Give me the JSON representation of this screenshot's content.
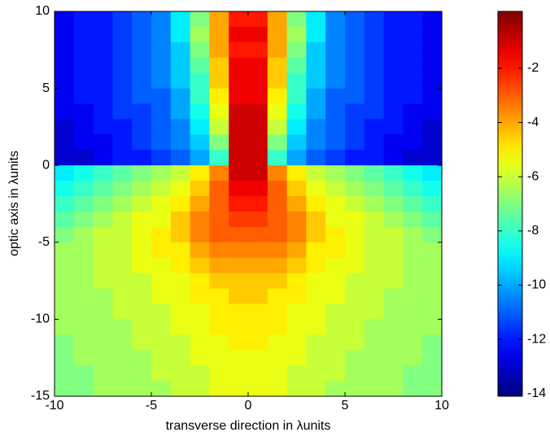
{
  "chart_data": {
    "type": "heatmap",
    "xlabel": "transverse direction in  λunits",
    "ylabel": "optic axis in λunits",
    "xlim": [
      -10,
      10
    ],
    "ylim": [
      -15,
      10
    ],
    "xticks": [
      -10,
      -5,
      0,
      5,
      10
    ],
    "yticks": [
      10,
      5,
      0,
      -5,
      -10,
      -15
    ],
    "colormap": "jet",
    "zlim": [
      -14.1,
      0.1
    ],
    "colorbar_ticks": [
      -2,
      -4,
      -6,
      -8,
      -10,
      -12,
      -14
    ],
    "x": [
      -9.5,
      -8.5,
      -7.5,
      -6.5,
      -5.5,
      -4.5,
      -3.5,
      -2.5,
      -1.5,
      -0.5,
      0.5,
      1.5,
      2.5,
      3.5,
      4.5,
      5.5,
      6.5,
      7.5,
      8.5,
      9.5
    ],
    "y": [
      9.5,
      8.5,
      7.5,
      6.5,
      5.5,
      4.5,
      3.5,
      2.5,
      1.5,
      0.5,
      -0.5,
      -1.5,
      -2.5,
      -3.5,
      -4.5,
      -5.5,
      -6.5,
      -7.5,
      -8.5,
      -9.5,
      -10.5,
      -11.5,
      -12.5,
      -13.5,
      -14.5
    ],
    "z": [
      [
        -12.5,
        -12,
        -12,
        -11.5,
        -11,
        -10.5,
        -9,
        -7,
        -4,
        -2,
        -2,
        -4,
        -7,
        -9,
        -10.5,
        -11,
        -11.5,
        -12,
        -12,
        -12.5
      ],
      [
        -12.5,
        -12,
        -12,
        -11.5,
        -11,
        -10.5,
        -9,
        -6.5,
        -4,
        -1.5,
        -1.5,
        -4,
        -6.5,
        -9,
        -10.5,
        -11,
        -11.5,
        -12,
        -12,
        -12.5
      ],
      [
        -12.5,
        -12,
        -12,
        -11.5,
        -11,
        -10.5,
        -9.5,
        -7,
        -4,
        -2,
        -2,
        -4,
        -7,
        -9.5,
        -10.5,
        -11,
        -11.5,
        -12,
        -12,
        -12.5
      ],
      [
        -12.5,
        -12,
        -12,
        -11.5,
        -11,
        -10.5,
        -9.5,
        -7.5,
        -4.5,
        -1.5,
        -1.5,
        -4.5,
        -7.5,
        -9.5,
        -10.5,
        -11,
        -11.5,
        -12,
        -12,
        -12.5
      ],
      [
        -12.5,
        -12,
        -12,
        -11.5,
        -11,
        -10.5,
        -9.5,
        -8,
        -4.5,
        -1.5,
        -1.5,
        -4.5,
        -8,
        -9.5,
        -10.5,
        -11,
        -11.5,
        -12,
        -12,
        -12.5
      ],
      [
        -12.5,
        -12,
        -12,
        -11.5,
        -11,
        -11,
        -10,
        -8,
        -5,
        -1.5,
        -1.5,
        -5,
        -8,
        -10,
        -11,
        -11,
        -11.5,
        -12,
        -12,
        -12.5
      ],
      [
        -12.5,
        -12.5,
        -12,
        -11.5,
        -11.5,
        -11,
        -10,
        -8.5,
        -5.5,
        -1,
        -1,
        -5.5,
        -8.5,
        -10,
        -11,
        -11.5,
        -11.5,
        -12,
        -12.5,
        -12.5
      ],
      [
        -13,
        -12.5,
        -12,
        -12,
        -11.5,
        -11,
        -10.5,
        -9,
        -6,
        -1,
        -1,
        -6,
        -9,
        -10.5,
        -11,
        -11.5,
        -12,
        -12,
        -12.5,
        -13
      ],
      [
        -13,
        -12.5,
        -12.5,
        -12,
        -11.5,
        -11,
        -10.5,
        -9.5,
        -7,
        -1,
        -1,
        -7,
        -9.5,
        -10.5,
        -11,
        -11.5,
        -12,
        -12.5,
        -12.5,
        -13
      ],
      [
        -13,
        -13,
        -12.5,
        -12,
        -12,
        -11.5,
        -11,
        -10,
        -8,
        -1,
        -1,
        -8,
        -10,
        -11,
        -11.5,
        -12,
        -12,
        -12.5,
        -13,
        -13
      ],
      [
        -9,
        -8.5,
        -8,
        -7.5,
        -7,
        -6.5,
        -6,
        -5,
        -3.5,
        -1,
        -1,
        -3.5,
        -5,
        -6,
        -6.5,
        -7,
        -7.5,
        -8,
        -8.5,
        -9
      ],
      [
        -8.5,
        -8,
        -7.5,
        -7,
        -6.5,
        -6,
        -5.5,
        -4.5,
        -3,
        -1.5,
        -1.5,
        -3,
        -4.5,
        -5.5,
        -6,
        -6.5,
        -7,
        -7.5,
        -8,
        -8.5
      ],
      [
        -8,
        -7.5,
        -7,
        -6.5,
        -6,
        -5.5,
        -5,
        -4,
        -3,
        -2,
        -2,
        -3,
        -4,
        -5,
        -5.5,
        -6,
        -6.5,
        -7,
        -7.5,
        -8
      ],
      [
        -7.5,
        -7,
        -6.5,
        -6,
        -5.5,
        -5.5,
        -4.5,
        -3.5,
        -3,
        -2.5,
        -2.5,
        -3,
        -3.5,
        -4.5,
        -5.5,
        -5.5,
        -6,
        -6.5,
        -7,
        -7.5
      ],
      [
        -7,
        -6.5,
        -6,
        -6,
        -5.5,
        -5,
        -4.5,
        -3.5,
        -3,
        -3,
        -3,
        -3,
        -3.5,
        -4.5,
        -5,
        -5.5,
        -6,
        -6,
        -6.5,
        -7
      ],
      [
        -6.5,
        -6.5,
        -6,
        -6,
        -5.5,
        -5,
        -5,
        -4,
        -3.5,
        -3.5,
        -3.5,
        -3.5,
        -4,
        -5,
        -5,
        -5.5,
        -6,
        -6,
        -6.5,
        -6.5
      ],
      [
        -6.5,
        -6.5,
        -6,
        -6,
        -5.5,
        -5.5,
        -5,
        -4.5,
        -4,
        -4,
        -4,
        -4,
        -4.5,
        -5,
        -5.5,
        -5.5,
        -6,
        -6,
        -6.5,
        -6.5
      ],
      [
        -6.5,
        -6.5,
        -6,
        -6,
        -6,
        -5.5,
        -5.5,
        -5,
        -4.5,
        -4.5,
        -4.5,
        -4.5,
        -5,
        -5.5,
        -5.5,
        -6,
        -6,
        -6,
        -6.5,
        -6.5
      ],
      [
        -6.5,
        -6.5,
        -6.5,
        -6,
        -6,
        -5.5,
        -5.5,
        -5,
        -5,
        -4.5,
        -4.5,
        -5,
        -5,
        -5.5,
        -5.5,
        -6,
        -6,
        -6.5,
        -6.5,
        -6.5
      ],
      [
        -6.5,
        -6.5,
        -6.5,
        -6,
        -6,
        -6,
        -5.5,
        -5.5,
        -5,
        -5,
        -5,
        -5,
        -5.5,
        -5.5,
        -6,
        -6,
        -6,
        -6.5,
        -6.5,
        -6.5
      ],
      [
        -6.5,
        -6.5,
        -6.5,
        -6.5,
        -6,
        -6,
        -5.5,
        -5.5,
        -5,
        -5,
        -5,
        -5,
        -5.5,
        -5.5,
        -6,
        -6,
        -6.5,
        -6.5,
        -6.5,
        -6.5
      ],
      [
        -7,
        -6.5,
        -6.5,
        -6.5,
        -6,
        -6,
        -6,
        -5.5,
        -5.5,
        -5,
        -5,
        -5.5,
        -5.5,
        -6,
        -6,
        -6,
        -6.5,
        -6.5,
        -6.5,
        -7
      ],
      [
        -7,
        -6.5,
        -6.5,
        -6.5,
        -6.5,
        -6,
        -6,
        -5.5,
        -5.5,
        -5.5,
        -5.5,
        -5.5,
        -5.5,
        -6,
        -6,
        -6.5,
        -6.5,
        -6.5,
        -6.5,
        -7
      ],
      [
        -7,
        -7,
        -6.5,
        -6.5,
        -6.5,
        -6,
        -6,
        -6,
        -5.5,
        -5.5,
        -5.5,
        -5.5,
        -6,
        -6,
        -6,
        -6.5,
        -6.5,
        -6.5,
        -7,
        -7
      ],
      [
        -7,
        -7,
        -6.5,
        -6.5,
        -6.5,
        -6.5,
        -6,
        -6,
        -5.5,
        -5.5,
        -5.5,
        -5.5,
        -6,
        -6,
        -6.5,
        -6.5,
        -6.5,
        -6.5,
        -7,
        -7
      ]
    ]
  }
}
